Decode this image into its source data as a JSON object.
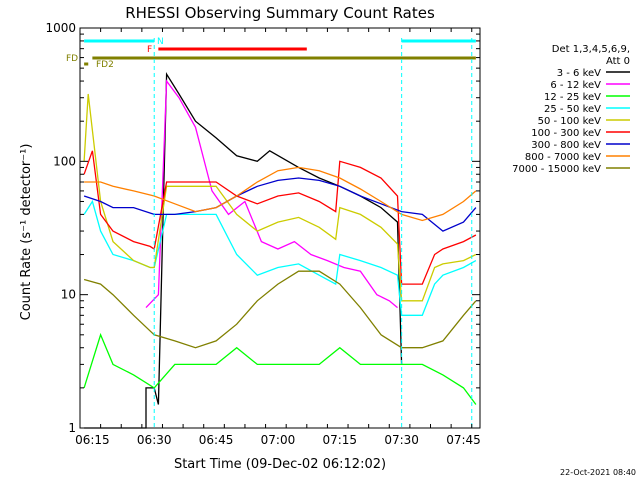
{
  "chart_data": {
    "type": "line",
    "title": "RHESSI Observing Summary Count Rates",
    "xlabel": "Start Time (09-Dec-02 06:12:02)",
    "ylabel": "Count Rate (s⁻¹ detector⁻¹)",
    "y_scale": "log",
    "ylim": [
      1,
      1000
    ],
    "xlim_minutes": [
      "06:12",
      "07:49"
    ],
    "x_ticks": [
      "06:15",
      "06:30",
      "06:45",
      "07:00",
      "07:15",
      "07:30",
      "07:45"
    ],
    "y_ticks": [
      "1",
      "10",
      "100",
      "1000"
    ],
    "footer_date": "22-Oct-2021 08:40",
    "legend": {
      "placement": "right",
      "header_lines": [
        "Det 1,3,4,5,6,9,",
        "Att 0"
      ]
    },
    "flags": [
      {
        "label": "N",
        "color": "#00ffff",
        "segments": [
          [
            "06:13",
            "06:30"
          ],
          [
            "07:30",
            "07:48"
          ]
        ]
      },
      {
        "label": "F",
        "color": "#ff0000",
        "segments": [
          [
            "06:31",
            "07:07"
          ]
        ]
      },
      {
        "label": "FD",
        "color": "#808000",
        "segments": [
          [
            "06:15",
            "07:48"
          ]
        ]
      },
      {
        "label": "FD2",
        "color": "#808000",
        "segments": [
          [
            "06:13",
            "06:14"
          ]
        ]
      }
    ],
    "series": [
      {
        "name": "3 - 6 keV",
        "color": "#000000",
        "x": [
          "06:13",
          "06:28",
          "06:28",
          "06:30",
          "06:31",
          "06:33",
          "06:36",
          "06:40",
          "06:45",
          "06:50",
          "06:55",
          "06:58",
          "07:05",
          "07:10",
          "07:15",
          "07:20",
          "07:25",
          "07:29",
          "07:30"
        ],
        "y": [
          1,
          1,
          2,
          2,
          1.5,
          450,
          320,
          200,
          150,
          110,
          100,
          120,
          90,
          75,
          65,
          55,
          45,
          35,
          3
        ]
      },
      {
        "name": "6 - 12 keV",
        "color": "#ff00ff",
        "x": [
          "06:28",
          "06:31",
          "06:33",
          "06:36",
          "06:40",
          "06:44",
          "06:48",
          "06:52",
          "06:56",
          "07:00",
          "07:04",
          "07:08",
          "07:12",
          "07:16",
          "07:20",
          "07:24",
          "07:27",
          "07:29"
        ],
        "y": [
          8,
          10,
          400,
          300,
          180,
          60,
          40,
          50,
          25,
          22,
          25,
          20,
          18,
          16,
          15,
          10,
          9,
          8
        ]
      },
      {
        "name": "12 - 25 keV",
        "color": "#00ff00",
        "x": [
          "06:13",
          "06:17",
          "06:20",
          "06:25",
          "06:30",
          "06:35",
          "06:40",
          "06:45",
          "06:50",
          "06:55",
          "07:00",
          "07:05",
          "07:10",
          "07:15",
          "07:20",
          "07:25",
          "07:30",
          "07:35",
          "07:40",
          "07:45",
          "07:48"
        ],
        "y": [
          2,
          5,
          3,
          2.5,
          2,
          3,
          3,
          3,
          4,
          3,
          3,
          3,
          3,
          4,
          3,
          3,
          3,
          3,
          2.5,
          2,
          1.5
        ]
      },
      {
        "name": "25 - 50 keV",
        "color": "#00ffff",
        "x": [
          "06:13",
          "06:15",
          "06:17",
          "06:20",
          "06:25",
          "06:29",
          "06:30",
          "06:33",
          "06:40",
          "06:45",
          "06:50",
          "06:55",
          "07:00",
          "07:05",
          "07:10",
          "07:14",
          "07:15",
          "07:20",
          "07:25",
          "07:29",
          "07:30",
          "07:35",
          "07:38",
          "07:40",
          "07:45",
          "07:48"
        ],
        "y": [
          40,
          50,
          30,
          20,
          18,
          16,
          16,
          40,
          40,
          40,
          20,
          14,
          16,
          17,
          14,
          12,
          20,
          18,
          16,
          14,
          7,
          7,
          12,
          14,
          16,
          18
        ]
      },
      {
        "name": "50 - 100 keV",
        "color": "#cccc00",
        "x": [
          "06:13",
          "06:14",
          "06:17",
          "06:20",
          "06:25",
          "06:29",
          "06:30",
          "06:33",
          "06:40",
          "06:45",
          "06:50",
          "06:55",
          "07:00",
          "07:05",
          "07:10",
          "07:14",
          "07:15",
          "07:20",
          "07:25",
          "07:29",
          "07:30",
          "07:35",
          "07:38",
          "07:40",
          "07:45",
          "07:48"
        ],
        "y": [
          100,
          320,
          50,
          25,
          18,
          16,
          16,
          65,
          65,
          65,
          40,
          30,
          35,
          38,
          32,
          26,
          45,
          40,
          32,
          24,
          9,
          9,
          16,
          17,
          18,
          20
        ]
      },
      {
        "name": "100 - 300 keV",
        "color": "#ff0000",
        "x": [
          "06:13",
          "06:15",
          "06:17",
          "06:20",
          "06:25",
          "06:29",
          "06:30",
          "06:33",
          "06:40",
          "06:45",
          "06:50",
          "06:55",
          "07:00",
          "07:05",
          "07:10",
          "07:14",
          "07:15",
          "07:20",
          "07:25",
          "07:29",
          "07:30",
          "07:35",
          "07:38",
          "07:40",
          "07:45",
          "07:48"
        ],
        "y": [
          80,
          120,
          40,
          30,
          25,
          23,
          22,
          70,
          70,
          70,
          55,
          48,
          55,
          58,
          50,
          42,
          100,
          90,
          75,
          55,
          12,
          12,
          20,
          22,
          25,
          28
        ]
      },
      {
        "name": "300 - 800 keV",
        "color": "#0000cc",
        "x": [
          "06:13",
          "06:17",
          "06:20",
          "06:25",
          "06:30",
          "06:35",
          "06:40",
          "06:45",
          "06:50",
          "06:55",
          "07:00",
          "07:05",
          "07:10",
          "07:15",
          "07:20",
          "07:25",
          "07:30",
          "07:35",
          "07:40",
          "07:45",
          "07:48"
        ],
        "y": [
          55,
          50,
          45,
          45,
          40,
          40,
          42,
          45,
          55,
          65,
          72,
          75,
          72,
          65,
          55,
          48,
          42,
          40,
          30,
          35,
          45
        ]
      },
      {
        "name": "800 - 7000 keV",
        "color": "#ff8000",
        "x": [
          "06:13",
          "06:17",
          "06:20",
          "06:25",
          "06:30",
          "06:35",
          "06:40",
          "06:45",
          "06:50",
          "06:55",
          "07:00",
          "07:05",
          "07:10",
          "07:15",
          "07:20",
          "07:25",
          "07:30",
          "07:35",
          "07:40",
          "07:45",
          "07:48"
        ],
        "y": [
          70,
          70,
          65,
          60,
          55,
          48,
          42,
          45,
          55,
          70,
          85,
          90,
          85,
          75,
          62,
          50,
          40,
          36,
          40,
          50,
          60
        ]
      },
      {
        "name": "7000 - 15000 keV",
        "color": "#808000",
        "x": [
          "06:13",
          "06:17",
          "06:20",
          "06:25",
          "06:30",
          "06:35",
          "06:40",
          "06:45",
          "06:50",
          "06:55",
          "07:00",
          "07:05",
          "07:10",
          "07:15",
          "07:20",
          "07:25",
          "07:30",
          "07:35",
          "07:40",
          "07:45",
          "07:48"
        ],
        "y": [
          13,
          12,
          10,
          7,
          5,
          4.5,
          4,
          4.5,
          6,
          9,
          12,
          15,
          15,
          12,
          8,
          5,
          4,
          4,
          4.5,
          7,
          9
        ]
      }
    ],
    "grid": false
  }
}
